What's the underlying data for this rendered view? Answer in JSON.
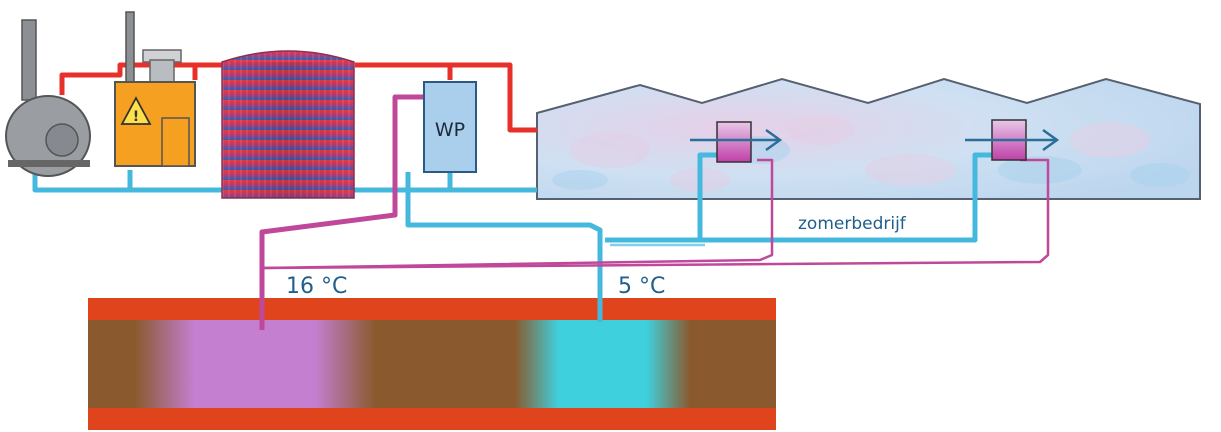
{
  "heat_pump_label": "WP",
  "labels": {
    "warm_temperature": "16 °C",
    "cold_temperature": "5 °C",
    "mode": "zomerbedrijf"
  },
  "colors": {
    "hot_pipe": "#e8302a",
    "cold_pipe": "#45b8de",
    "warm_well_pipe": "#c0489a",
    "aquifer_layer": "#8a5a2e",
    "clay_layer": "#e0441c",
    "greenhouse_fill": "#d6e4f1",
    "boiler_body": "#f5a020",
    "heat_pump_body": "#a9cfec"
  },
  "icons": [
    "boiler-icon",
    "chp-unit-icon",
    "warning-icon",
    "buffer-tank-icon",
    "heat-pump-icon",
    "greenhouse-icon",
    "heat-exchanger-icon",
    "flow-arrow-icon",
    "aquifer-icon"
  ]
}
